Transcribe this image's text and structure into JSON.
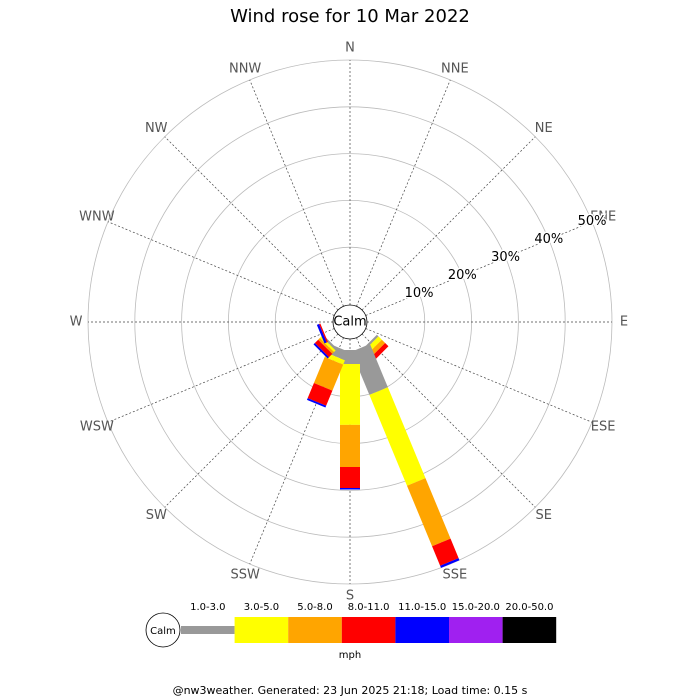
{
  "chart_data": {
    "type": "windrose",
    "title": "Wind rose for 10 Mar 2022",
    "categories": [
      "N",
      "NNE",
      "NE",
      "ENE",
      "E",
      "ESE",
      "SE",
      "SSE",
      "S",
      "SSW",
      "SW",
      "WSW",
      "W",
      "WNW",
      "NW",
      "NNW"
    ],
    "series": [
      {
        "name": "1.0-3.0",
        "color": "#999999",
        "values": [
          0,
          0,
          0,
          0,
          0,
          0,
          0.5,
          10,
          3,
          2,
          0.5,
          0,
          0,
          0,
          0,
          0
        ]
      },
      {
        "name": "3.0-5.0",
        "color": "#ffff00",
        "values": [
          0,
          0,
          0,
          0,
          0,
          0,
          1,
          21,
          13,
          1,
          0.5,
          0,
          0,
          0,
          0,
          0
        ]
      },
      {
        "name": "5.0-8.0",
        "color": "#ffa500",
        "values": [
          0,
          0,
          0,
          0,
          0,
          0,
          1,
          14,
          9,
          6,
          0.5,
          0,
          0,
          0,
          0,
          0
        ]
      },
      {
        "name": "8.0-11.0",
        "color": "#ff0000",
        "values": [
          0,
          0,
          0,
          0,
          0,
          0,
          1,
          4.5,
          4.5,
          3.5,
          1,
          0.3,
          0,
          0,
          0,
          0
        ]
      },
      {
        "name": "11.0-15.0",
        "color": "#0000ff",
        "values": [
          0,
          0,
          0,
          0,
          0,
          0,
          0,
          0.5,
          0.3,
          0.4,
          0.4,
          0.5,
          0,
          0,
          0,
          0
        ]
      },
      {
        "name": "15.0-20.0",
        "color": "#a020f0",
        "values": [
          0,
          0,
          0,
          0,
          0,
          0,
          0,
          0,
          0,
          0,
          0,
          0,
          0,
          0,
          0,
          0
        ]
      },
      {
        "name": "20.0-50.0",
        "color": "#000000",
        "values": [
          0,
          0,
          0,
          0,
          0,
          0,
          0,
          0,
          0,
          0,
          0,
          0,
          0,
          0,
          0,
          0
        ]
      }
    ],
    "rlim": [
      0,
      50
    ],
    "rticks": [
      {
        "value": 10,
        "label": "10%"
      },
      {
        "value": 20,
        "label": "20%"
      },
      {
        "value": 30,
        "label": "30%"
      },
      {
        "value": 40,
        "label": "40%"
      },
      {
        "value": 50,
        "label": "50%"
      }
    ],
    "calm_label": "Calm",
    "unit": "mph"
  },
  "footer": "@nw3weather. Generated: 23 Jun 2025 21:18; Load time: 0.15 s"
}
